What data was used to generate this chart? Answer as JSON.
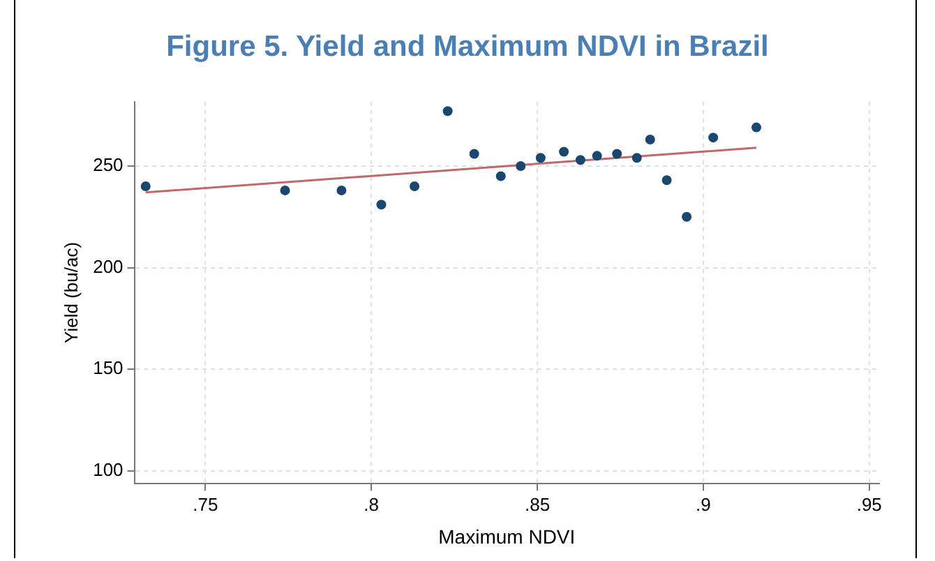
{
  "chart_data": {
    "type": "scatter",
    "title": "Figure 5. Yield and Maximum NDVI in Brazil",
    "xlabel": "Maximum NDVI",
    "ylabel": "Yield (bu/ac)",
    "xlim": [
      0.7286,
      0.953
    ],
    "ylim": [
      93.7,
      281.7
    ],
    "xticks": [
      {
        "value": 0.75,
        "label": ".75"
      },
      {
        "value": 0.8,
        "label": ".8"
      },
      {
        "value": 0.85,
        "label": ".85"
      },
      {
        "value": 0.9,
        "label": ".9"
      },
      {
        "value": 0.95,
        "label": ".95"
      }
    ],
    "yticks": [
      100,
      150,
      200,
      250
    ],
    "grid": true,
    "legend": false,
    "series": [
      {
        "type": "scatter",
        "marker": "circle",
        "color": "#1a476f",
        "x": [
          0.732,
          0.774,
          0.791,
          0.803,
          0.813,
          0.823,
          0.831,
          0.839,
          0.845,
          0.851,
          0.858,
          0.863,
          0.868,
          0.874,
          0.88,
          0.884,
          0.889,
          0.895,
          0.903,
          0.916
        ],
        "values": [
          240,
          238,
          238,
          231,
          240,
          277,
          256,
          245,
          250,
          254,
          257,
          253,
          255,
          256,
          254,
          263,
          243,
          225,
          264,
          269
        ]
      },
      {
        "type": "line",
        "marker": "none",
        "color": "#c0686a",
        "x": [
          0.732,
          0.916
        ],
        "values": [
          237,
          259
        ]
      }
    ]
  }
}
